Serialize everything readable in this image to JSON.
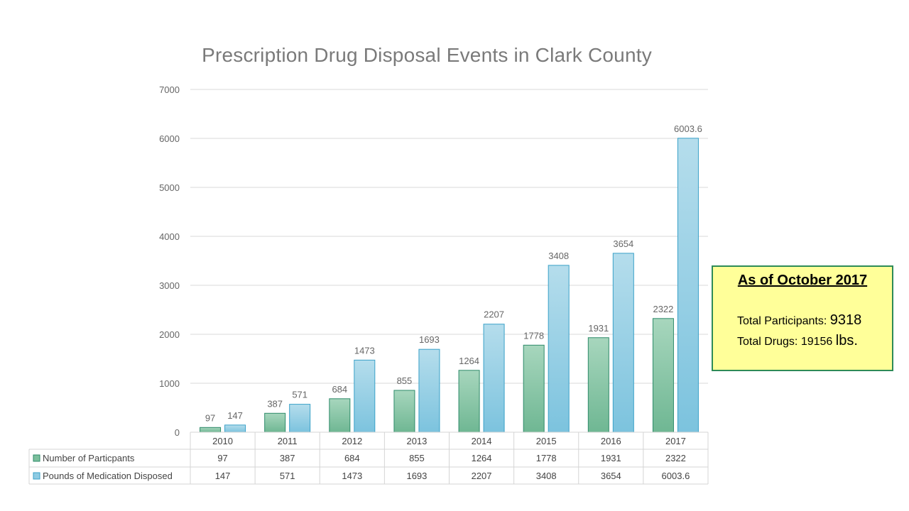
{
  "chart_data": {
    "type": "bar",
    "title": "Prescription Drug Disposal Events in Clark County",
    "categories": [
      "2010",
      "2011",
      "2012",
      "2013",
      "2014",
      "2015",
      "2016",
      "2017"
    ],
    "series": [
      {
        "name": "Number of Particpants",
        "values": [
          97,
          387,
          684,
          855,
          1264,
          1778,
          1931,
          2322
        ],
        "color": "#7bbf9c"
      },
      {
        "name": "Pounds of Medication Disposed",
        "values": [
          147,
          571,
          1473,
          1693,
          2207,
          3408,
          3654,
          6003.6
        ],
        "color": "#8ecbe3"
      }
    ],
    "ylim": [
      0,
      7000
    ],
    "yticks": [
      0,
      1000,
      2000,
      3000,
      4000,
      5000,
      6000,
      7000
    ],
    "xlabel": "",
    "ylabel": "",
    "grid": true,
    "data_table": true
  },
  "info_box": {
    "heading": "As of October 2017",
    "participants_label": "Total Participants: ",
    "participants_value": "9318",
    "drugs_label": "Total Drugs: 19156 ",
    "drugs_unit": "lbs."
  },
  "colors": {
    "series1_edge": "#2e8b6a",
    "series2_edge": "#3aa1c8",
    "info_border": "#2e8b57",
    "info_bg": "#ffff99"
  }
}
